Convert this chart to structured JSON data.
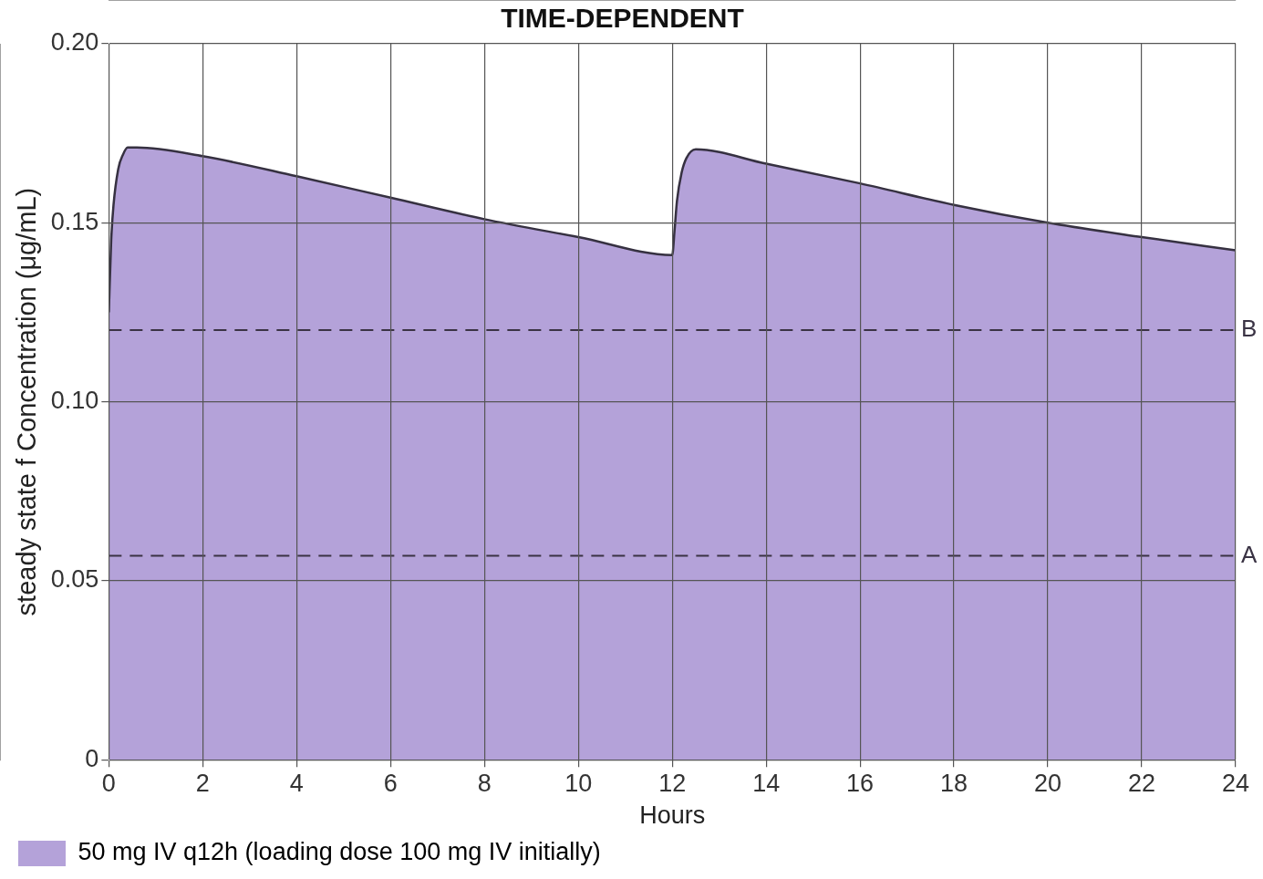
{
  "chart_data": {
    "type": "area",
    "title": "TIME-DEPENDENT",
    "xlabel": "Hours",
    "ylabel": "steady state f Concentration (μg/mL)",
    "series": [
      {
        "name": "50 mg IV q12h (loading dose 100 mg IV initially)",
        "color": "#b4a2d9",
        "x": [
          0,
          0.05,
          0.1,
          0.2,
          0.3,
          0.4,
          0.6,
          2,
          4,
          6,
          8,
          10,
          12,
          12.05,
          12.1,
          12.2,
          12.3,
          12.5,
          14,
          16,
          18,
          20,
          22,
          24
        ],
        "values": [
          0.125,
          0.145,
          0.155,
          0.165,
          0.169,
          0.171,
          0.171,
          0.1686,
          0.163,
          0.157,
          0.151,
          0.146,
          0.141,
          0.148,
          0.156,
          0.164,
          0.168,
          0.1705,
          0.1665,
          0.161,
          0.155,
          0.15,
          0.146,
          0.1423
        ]
      }
    ],
    "xlim": [
      0,
      24
    ],
    "xticks": [
      0,
      2,
      4,
      6,
      8,
      10,
      12,
      14,
      16,
      18,
      20,
      22,
      24
    ],
    "ylim": [
      0,
      0.2
    ],
    "yticks": [
      0,
      0.05,
      {
        "value": 0.1,
        "label": "0.10"
      },
      0.15,
      {
        "value": 0.2,
        "label": "0.20"
      }
    ],
    "ref_lines": [
      {
        "axis": "y",
        "value": 0.12,
        "label": "B",
        "color": "#3a3344",
        "line_style": "dashed"
      },
      {
        "axis": "y",
        "value": 0.057,
        "label": "A",
        "color": "#3a3344",
        "line_style": "dashed"
      }
    ],
    "grid": true,
    "legend": "bottom left"
  }
}
